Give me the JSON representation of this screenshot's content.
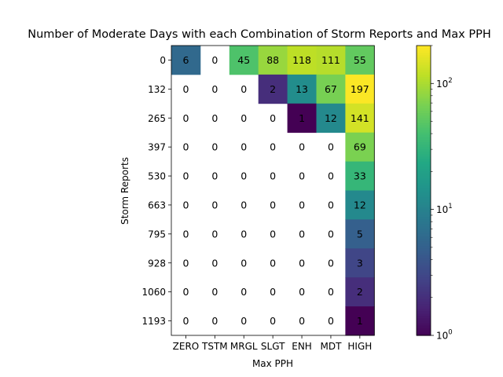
{
  "chart_data": {
    "type": "heatmap",
    "title": "Number of Moderate Days with each Combination of Storm Reports and Max PPH",
    "xlabel": "Max PPH",
    "ylabel": "Storm Reports",
    "x_categories": [
      "ZERO",
      "TSTM",
      "MRGL",
      "SLGT",
      "ENH",
      "MDT",
      "HIGH"
    ],
    "y_categories": [
      "0",
      "132",
      "265",
      "397",
      "530",
      "663",
      "795",
      "928",
      "1060",
      "1193"
    ],
    "values": [
      [
        6,
        0,
        45,
        88,
        118,
        111,
        55
      ],
      [
        0,
        0,
        0,
        2,
        13,
        67,
        197
      ],
      [
        0,
        0,
        0,
        0,
        1,
        12,
        141
      ],
      [
        0,
        0,
        0,
        0,
        0,
        0,
        69
      ],
      [
        0,
        0,
        0,
        0,
        0,
        0,
        33
      ],
      [
        0,
        0,
        0,
        0,
        0,
        0,
        12
      ],
      [
        0,
        0,
        0,
        0,
        0,
        0,
        5
      ],
      [
        0,
        0,
        0,
        0,
        0,
        0,
        3
      ],
      [
        0,
        0,
        0,
        0,
        0,
        0,
        2
      ],
      [
        0,
        0,
        0,
        0,
        0,
        0,
        1
      ]
    ],
    "colormap": "viridis",
    "color_scale": "log",
    "color_range": [
      1,
      200
    ],
    "colorbar_ticks": [
      {
        "base": "10",
        "exp": "0",
        "value": 1
      },
      {
        "base": "10",
        "exp": "1",
        "value": 10
      },
      {
        "base": "10",
        "exp": "2",
        "value": 100
      }
    ]
  }
}
